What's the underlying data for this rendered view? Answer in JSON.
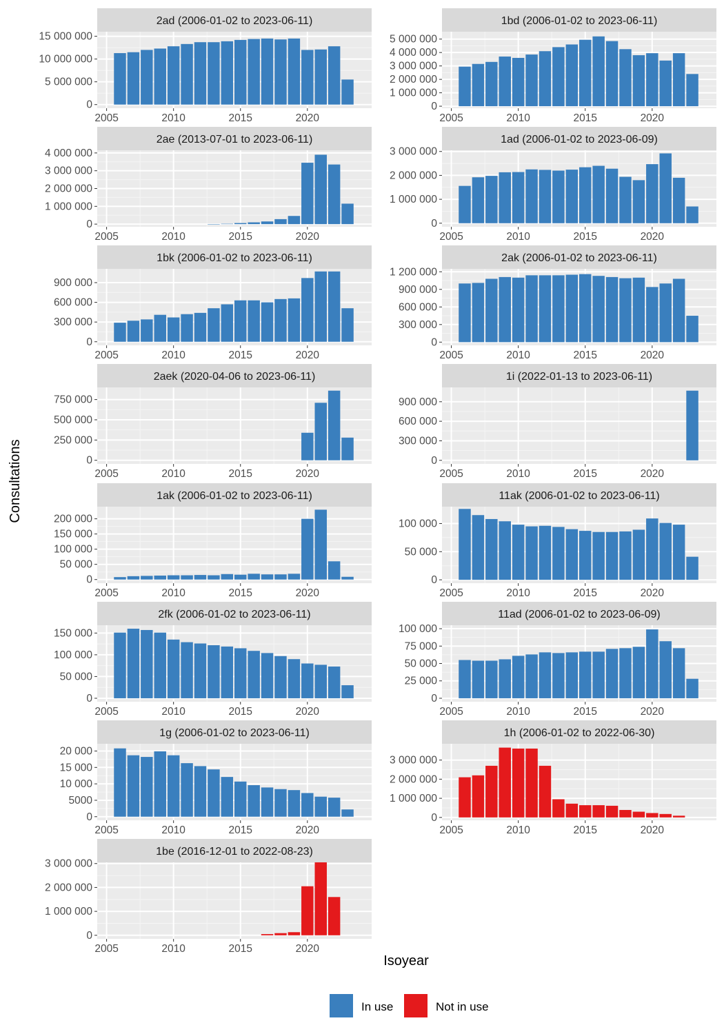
{
  "chart_data": {
    "type": "bar",
    "layout": "faceted bar chart, 2 columns, 8 rows",
    "xlabel": "Isoyear",
    "ylabel": "Consultations",
    "x_ticks": [
      2005,
      2010,
      2015,
      2020
    ],
    "xlim": [
      2004.3,
      2024.8
    ],
    "years": [
      2006,
      2007,
      2008,
      2009,
      2010,
      2011,
      2012,
      2013,
      2014,
      2015,
      2016,
      2017,
      2018,
      2019,
      2020,
      2021,
      2022,
      2023
    ],
    "legend": {
      "position": "bottom",
      "entries": [
        {
          "key": "in_use",
          "label": "In use",
          "color": "#3A7FBE"
        },
        {
          "key": "not_in_use",
          "label": "Not in use",
          "color": "#E41A1C"
        }
      ]
    },
    "panels": [
      {
        "title": "2ad (2006-01-02 to 2023-06-11)",
        "status": "in_use",
        "yticks": [
          0,
          5000000,
          10000000,
          15000000
        ],
        "ylabels": [
          "0",
          "5 000 000",
          "10 000 000",
          "15 000 000"
        ],
        "ylim": [
          -800000,
          16000000
        ],
        "values": [
          11300000,
          11500000,
          12000000,
          12300000,
          12800000,
          13300000,
          13700000,
          13700000,
          13900000,
          14200000,
          14400000,
          14500000,
          14300000,
          14500000,
          12000000,
          12100000,
          12800000,
          5500000
        ]
      },
      {
        "title": "1bd (2006-01-02 to 2023-06-11)",
        "status": "in_use",
        "yticks": [
          0,
          1000000,
          2000000,
          3000000,
          4000000,
          5000000
        ],
        "ylabels": [
          "0",
          "1 000 000",
          "2 000 000",
          "3 000 000",
          "4 000 000",
          "5 000 000"
        ],
        "ylim": [
          -150000,
          5550000
        ],
        "values": [
          2950000,
          3150000,
          3300000,
          3700000,
          3600000,
          3850000,
          4100000,
          4400000,
          4600000,
          4950000,
          5200000,
          4850000,
          4250000,
          3800000,
          3950000,
          3400000,
          3950000,
          2400000
        ]
      },
      {
        "title": "2ae (2013-07-01 to 2023-06-11)",
        "status": "in_use",
        "yticks": [
          0,
          1000000,
          2000000,
          3000000,
          4000000
        ],
        "ylabels": [
          "0",
          "1 000 000",
          "2 000 000",
          "3 000 000",
          "4 000 000"
        ],
        "ylim": [
          -150000,
          4150000
        ],
        "values": [
          0,
          0,
          0,
          0,
          0,
          0,
          0,
          5000,
          20000,
          60000,
          100000,
          150000,
          280000,
          460000,
          3450000,
          3900000,
          3350000,
          1150000
        ]
      },
      {
        "title": "1ad (2006-01-02 to 2023-06-09)",
        "status": "in_use",
        "yticks": [
          0,
          1000000,
          2000000,
          3000000
        ],
        "ylabels": [
          "0",
          "1 000 000",
          "2 000 000",
          "3 000 000"
        ],
        "ylim": [
          -150000,
          3050000
        ],
        "values": [
          1560000,
          1920000,
          1980000,
          2130000,
          2140000,
          2250000,
          2230000,
          2200000,
          2240000,
          2340000,
          2400000,
          2280000,
          1940000,
          1800000,
          2470000,
          2920000,
          1900000,
          700000
        ]
      },
      {
        "title": "1bk (2006-01-02 to 2023-06-11)",
        "status": "in_use",
        "yticks": [
          0,
          300000,
          600000,
          900000
        ],
        "ylabels": [
          "0",
          "300 000",
          "600 000",
          "900 000"
        ],
        "ylim": [
          -55000,
          1110000
        ],
        "values": [
          290000,
          320000,
          340000,
          410000,
          370000,
          420000,
          440000,
          510000,
          570000,
          630000,
          630000,
          600000,
          650000,
          660000,
          970000,
          1070000,
          1070000,
          510000
        ]
      },
      {
        "title": "2ak (2006-01-02 to 2023-06-11)",
        "status": "in_use",
        "yticks": [
          0,
          300000,
          600000,
          900000,
          1200000
        ],
        "ylabels": [
          "0",
          "300 000",
          "600 000",
          "900 000",
          "1 200 000"
        ],
        "ylim": [
          -55000,
          1250000
        ],
        "values": [
          1000000,
          1010000,
          1080000,
          1110000,
          1100000,
          1140000,
          1140000,
          1140000,
          1150000,
          1160000,
          1130000,
          1110000,
          1090000,
          1100000,
          940000,
          1000000,
          1080000,
          450000
        ]
      },
      {
        "title": "2aek (2020-04-06 to 2023-06-11)",
        "status": "in_use",
        "yticks": [
          0,
          250000,
          500000,
          750000
        ],
        "ylabels": [
          "0",
          "250 000",
          "500 000",
          "750 000"
        ],
        "ylim": [
          -45000,
          900000
        ],
        "values": [
          0,
          0,
          0,
          0,
          0,
          0,
          0,
          0,
          0,
          0,
          0,
          0,
          0,
          0,
          340000,
          710000,
          860000,
          280000
        ]
      },
      {
        "title": "1i (2022-01-13 to 2023-06-11)",
        "status": "in_use",
        "yticks": [
          0,
          300000,
          600000,
          900000
        ],
        "ylabels": [
          "0",
          "300 000",
          "600 000",
          "900 000"
        ],
        "ylim": [
          -55000,
          1120000
        ],
        "values": [
          0,
          0,
          0,
          0,
          0,
          0,
          0,
          0,
          0,
          0,
          0,
          0,
          0,
          0,
          0,
          0,
          0,
          1070000
        ]
      },
      {
        "title": "1ak (2006-01-02 to 2023-06-11)",
        "status": "in_use",
        "yticks": [
          0,
          50000,
          100000,
          150000,
          200000
        ],
        "ylabels": [
          "0",
          "50 000",
          "100 000",
          "150 000",
          "200 000"
        ],
        "ylim": [
          -12000,
          240000
        ],
        "values": [
          8000,
          11000,
          12000,
          13000,
          14000,
          14000,
          15000,
          14000,
          18000,
          16000,
          19000,
          17000,
          17000,
          19000,
          200000,
          230000,
          60000,
          9000
        ]
      },
      {
        "title": "11ak (2006-01-02 to 2023-06-11)",
        "status": "in_use",
        "yticks": [
          0,
          50000,
          100000
        ],
        "ylabels": [
          "0",
          "50 000",
          "100 000"
        ],
        "ylim": [
          -6000,
          130000
        ],
        "values": [
          126000,
          115000,
          108000,
          104000,
          98000,
          95000,
          96000,
          94000,
          90000,
          87000,
          85000,
          85000,
          86000,
          89000,
          109000,
          101000,
          98000,
          41000
        ]
      },
      {
        "title": "2fk (2006-01-02 to 2023-06-11)",
        "status": "in_use",
        "yticks": [
          0,
          50000,
          100000,
          150000
        ],
        "ylabels": [
          "0",
          "50 000",
          "100 000",
          "150 000"
        ],
        "ylim": [
          -8000,
          168000
        ],
        "values": [
          151000,
          160000,
          157000,
          151000,
          135000,
          129000,
          126000,
          122000,
          119000,
          115000,
          109000,
          104000,
          97000,
          90000,
          80000,
          77000,
          73000,
          30000
        ]
      },
      {
        "title": "11ad (2006-01-02 to 2023-06-09)",
        "status": "in_use",
        "yticks": [
          0,
          25000,
          50000,
          75000,
          100000
        ],
        "ylabels": [
          "0",
          "25 000",
          "50 000",
          "75 000",
          "100 000"
        ],
        "ylim": [
          -5000,
          105000
        ],
        "values": [
          55000,
          54000,
          54000,
          56000,
          61000,
          63000,
          66000,
          65000,
          66000,
          67000,
          67000,
          71000,
          72000,
          74000,
          99000,
          82000,
          72000,
          28000
        ]
      },
      {
        "title": "1g (2006-01-02 to 2023-06-11)",
        "status": "in_use",
        "yticks": [
          0,
          5000,
          10000,
          15000,
          20000
        ],
        "ylabels": [
          "0",
          "5000",
          "10 000",
          "15 000",
          "20 000"
        ],
        "ylim": [
          -1100,
          22200
        ],
        "values": [
          20800,
          18700,
          18200,
          19900,
          18700,
          16300,
          15400,
          14400,
          12100,
          10700,
          9600,
          8900,
          8400,
          8100,
          7200,
          6100,
          5800,
          2200
        ]
      },
      {
        "title": "1h (2006-01-02 to 2022-06-30)",
        "status": "not_in_use",
        "yticks": [
          0,
          1000000,
          2000000,
          3000000
        ],
        "ylabels": [
          "0",
          "1 000 000",
          "2 000 000",
          "3 000 000"
        ],
        "ylim": [
          -150000,
          3850000
        ],
        "values": [
          2100000,
          2200000,
          2700000,
          3650000,
          3600000,
          3600000,
          2700000,
          950000,
          720000,
          640000,
          640000,
          610000,
          390000,
          300000,
          230000,
          180000,
          90000,
          0
        ]
      },
      {
        "title": "1be (2016-12-01 to 2022-08-23)",
        "status": "not_in_use",
        "yticks": [
          0,
          1000000,
          2000000,
          3000000
        ],
        "ylabels": [
          "0",
          "1 000 000",
          "2 000 000",
          "3 000 000"
        ],
        "ylim": [
          -150000,
          3050000
        ],
        "values": [
          0,
          0,
          0,
          0,
          0,
          0,
          0,
          0,
          0,
          0,
          0,
          50000,
          90000,
          130000,
          2050000,
          3050000,
          1600000,
          0
        ]
      }
    ]
  }
}
